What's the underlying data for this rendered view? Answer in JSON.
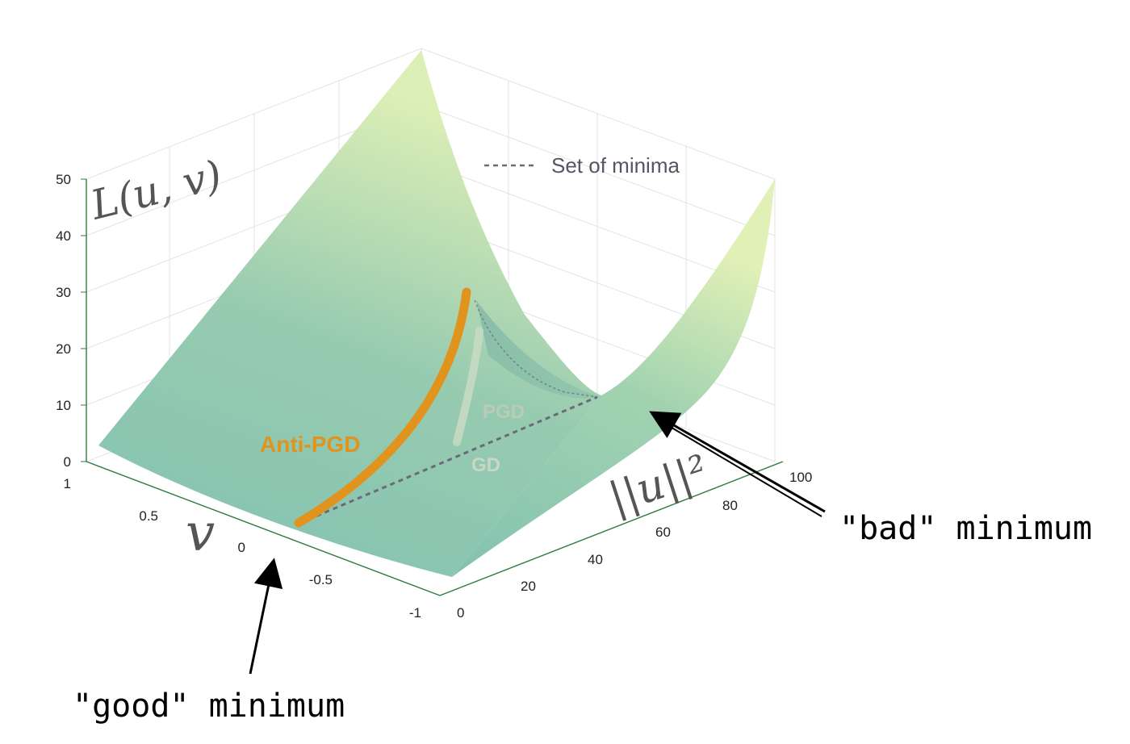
{
  "chart_data": {
    "type": "surface3d",
    "zlabel": "L(u, v)",
    "xlabel": "||u||²",
    "ylabel": "v",
    "z_ticks": [
      "0",
      "10",
      "20",
      "30",
      "40",
      "50"
    ],
    "v_ticks": [
      "1",
      "0.5",
      "0",
      "-0.5",
      "-1"
    ],
    "u_ticks": [
      "0",
      "20",
      "40",
      "60",
      "80",
      "100"
    ],
    "zlim": [
      0,
      50
    ],
    "vlim": [
      -1,
      1
    ],
    "ulim": [
      0,
      100
    ],
    "legend": {
      "entry": "Set of minima",
      "style": "dashed",
      "placement": "top-right"
    },
    "trajectories": [
      {
        "name": "Anti-PGD",
        "color": "#e0941e"
      },
      {
        "name": "PGD",
        "color": "#b9ccb6"
      },
      {
        "name": "GD",
        "color": "#c8d8c4"
      }
    ],
    "annotations": [
      "\"good\" minimum",
      "\"bad\" minimum"
    ],
    "colors": {
      "surface_low": "#7fbfae",
      "surface_high": "#dceeb2",
      "anti_pgd": "#e0941e"
    },
    "grid": true
  }
}
